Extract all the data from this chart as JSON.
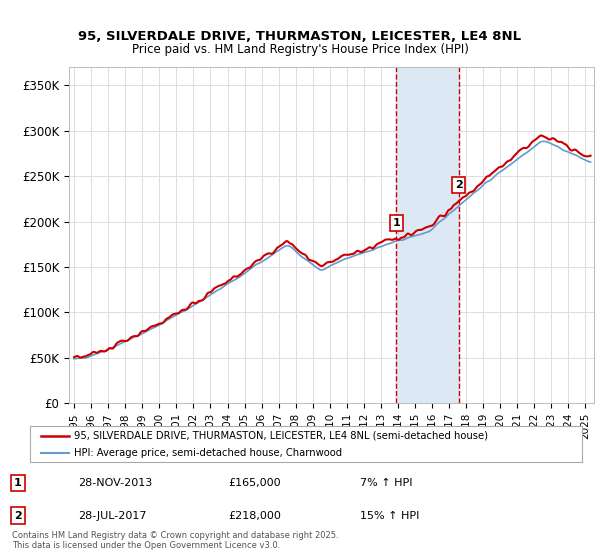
{
  "title_line1": "95, SILVERDALE DRIVE, THURMASTON, LEICESTER, LE4 8NL",
  "title_line2": "Price paid vs. HM Land Registry's House Price Index (HPI)",
  "ylabel_ticks": [
    "£0",
    "£50K",
    "£100K",
    "£150K",
    "£200K",
    "£250K",
    "£300K",
    "£350K"
  ],
  "ytick_values": [
    0,
    50000,
    100000,
    150000,
    200000,
    250000,
    300000,
    350000
  ],
  "ylim": [
    0,
    370000
  ],
  "xlim_start": 1995.0,
  "xlim_end": 2025.5,
  "xtick_years": [
    1995,
    1996,
    1997,
    1998,
    1999,
    2000,
    2001,
    2002,
    2003,
    2004,
    2005,
    2006,
    2007,
    2008,
    2009,
    2010,
    2011,
    2012,
    2013,
    2014,
    2015,
    2016,
    2017,
    2018,
    2019,
    2020,
    2021,
    2022,
    2023,
    2024,
    2025
  ],
  "sale1_x": 2013.91,
  "sale1_y": 165000,
  "sale1_label": "1",
  "sale2_x": 2017.57,
  "sale2_y": 218000,
  "sale2_label": "2",
  "line_color_property": "#cc0000",
  "line_color_hpi": "#6699cc",
  "shaded_color": "#dde8f5",
  "vline_color": "#cc0000",
  "legend_label_property": "95, SILVERDALE DRIVE, THURMASTON, LEICESTER, LE4 8NL (semi-detached house)",
  "legend_label_hpi": "HPI: Average price, semi-detached house, Charnwood",
  "annotation1_date": "28-NOV-2013",
  "annotation1_price": "£165,000",
  "annotation1_hpi": "7% ↑ HPI",
  "annotation2_date": "28-JUL-2017",
  "annotation2_price": "£218,000",
  "annotation2_hpi": "15% ↑ HPI",
  "footer_text": "Contains HM Land Registry data © Crown copyright and database right 2025.\nThis data is licensed under the Open Government Licence v3.0.",
  "bg_color": "#ffffff",
  "grid_color": "#dddddd"
}
